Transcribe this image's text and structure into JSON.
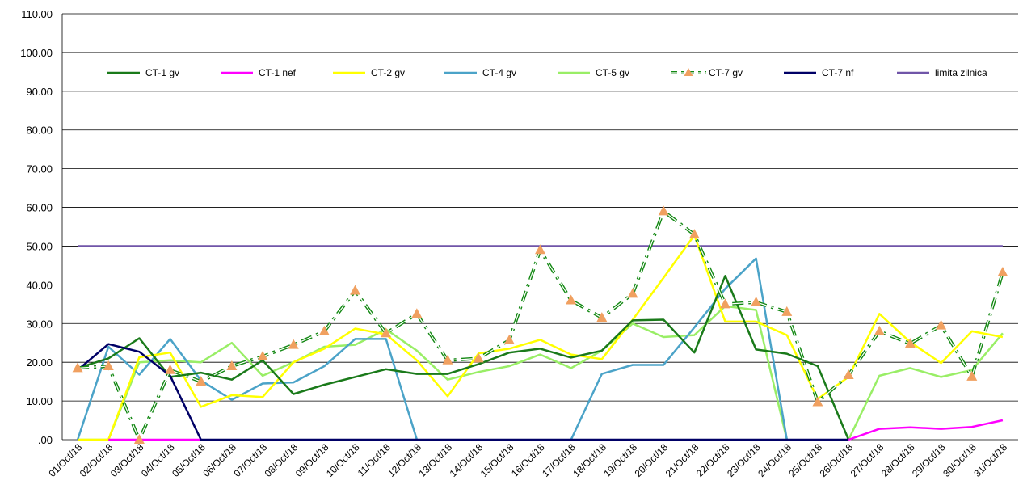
{
  "chart_data": {
    "type": "line",
    "title": "",
    "xlabel": "",
    "ylabel": "",
    "ylim": [
      0,
      110
    ],
    "y_ticks": [
      "110.00",
      "100.00",
      "90.00",
      "80.00",
      "70.00",
      "60.00",
      "50.00",
      "40.00",
      "30.00",
      "20.00",
      "10.00",
      ".00"
    ],
    "grid": "horizontal",
    "legend_position": "top",
    "categories": [
      "01/Oct/18",
      "02/Oct/18",
      "03/Oct/18",
      "04/Oct/18",
      "05/Oct/18",
      "06/Oct/18",
      "07/Oct/18",
      "08/Oct/18",
      "09/Oct/18",
      "10/Oct/18",
      "11/Oct/18",
      "12/Oct/18",
      "13/Oct/18",
      "14/Oct/18",
      "15/Oct/18",
      "16/Oct/18",
      "17/Oct/18",
      "18/Oct/18",
      "19/Oct/18",
      "20/Oct/18",
      "21/Oct/18",
      "22/Oct/18",
      "23/Oct/18",
      "24/Oct/18",
      "25/Oct/18",
      "26/Oct/18",
      "27/Oct/18",
      "28/Oct/18",
      "29/Oct/18",
      "30/Oct/18",
      "31/Oct/18"
    ],
    "series": [
      {
        "name": "CT-1 gv",
        "color": "#1a7a1a",
        "style": "solid",
        "values": [
          18.5,
          21,
          26.2,
          16.2,
          17.3,
          15.5,
          20.5,
          11.8,
          14.2,
          16.2,
          18.2,
          17,
          17,
          19.5,
          22.5,
          23.5,
          21.2,
          23,
          30.8,
          31,
          22.5,
          42.3,
          23.3,
          22.2,
          19,
          0,
          null,
          null,
          null,
          null,
          null
        ]
      },
      {
        "name": "CT-1 nef",
        "color": "#ff00ff",
        "style": "solid",
        "values": [
          null,
          0,
          0,
          0,
          0,
          null,
          null,
          null,
          null,
          null,
          null,
          null,
          null,
          null,
          null,
          null,
          null,
          null,
          null,
          null,
          null,
          null,
          null,
          null,
          null,
          0,
          2.8,
          3.2,
          2.8,
          3.3,
          5
        ]
      },
      {
        "name": "CT-2 gv",
        "color": "#ffff00",
        "style": "solid",
        "values": [
          0,
          0,
          21.3,
          22.5,
          8.5,
          11.5,
          11,
          20,
          23.5,
          28.7,
          27.2,
          20.5,
          11.2,
          22.3,
          23.5,
          25.8,
          22,
          20.8,
          31,
          41.8,
          52.8,
          30.5,
          30.5,
          27,
          10.5,
          16.2,
          32.5,
          25.2,
          19.8,
          28,
          26.5
        ]
      },
      {
        "name": "CT-4 gv",
        "color": "#4ba3c8",
        "style": "solid",
        "values": [
          0,
          24,
          16.8,
          26,
          15.3,
          10.3,
          14.5,
          14.8,
          19,
          26,
          26,
          0,
          null,
          null,
          null,
          null,
          0,
          17,
          19.3,
          19.3,
          29,
          39,
          46.8,
          0,
          null,
          null,
          null,
          null,
          null,
          null,
          null
        ]
      },
      {
        "name": "CT-5 gv",
        "color": "#99ee66",
        "style": "solid",
        "values": [
          0,
          0,
          20,
          20.5,
          20,
          25,
          16.5,
          20,
          24,
          24.5,
          28.5,
          23,
          15.5,
          17.5,
          19,
          22,
          18.5,
          23,
          30,
          26.5,
          27,
          34.5,
          33.5,
          0,
          null,
          0,
          16.5,
          18.5,
          16.2,
          18,
          27.5
        ]
      },
      {
        "name": "CT-7 gv",
        "color": "#138813",
        "style": "dashdot",
        "marker": "triangle",
        "marker_color": "#f0a060",
        "values": [
          18.5,
          19,
          0,
          18,
          15,
          19,
          21.5,
          24.5,
          28,
          38.5,
          27.5,
          32.5,
          20.5,
          21,
          25.7,
          49,
          36,
          31.5,
          37.7,
          59,
          53,
          35,
          35.5,
          33,
          9.7,
          16.7,
          28,
          24.8,
          29.5,
          16.3,
          43.2
        ]
      },
      {
        "name": "CT-7 nf",
        "color": "#000066",
        "style": "solid",
        "values": [
          18,
          24.7,
          22.7,
          16.5,
          0,
          0,
          0,
          0,
          0,
          0,
          0,
          0,
          0,
          0,
          0,
          0,
          0,
          0,
          0,
          0,
          0,
          0,
          0,
          0,
          0,
          0,
          null,
          null,
          null,
          null,
          null
        ]
      },
      {
        "name": "limita zilnica",
        "color": "#7055a8",
        "style": "solid",
        "values": [
          50,
          50,
          50,
          50,
          50,
          50,
          50,
          50,
          50,
          50,
          50,
          50,
          50,
          50,
          50,
          50,
          50,
          50,
          50,
          50,
          50,
          50,
          50,
          50,
          50,
          50,
          50,
          50,
          50,
          50,
          50
        ]
      }
    ]
  }
}
